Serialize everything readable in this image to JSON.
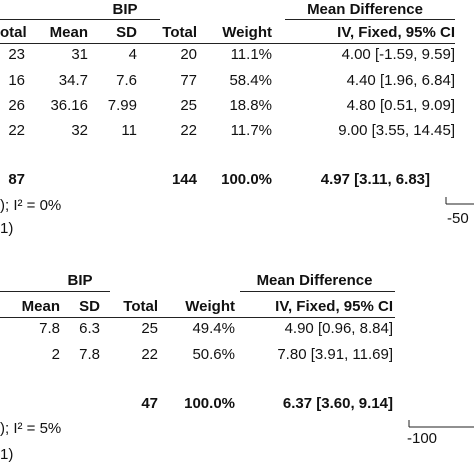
{
  "chart_data": [
    {
      "type": "table",
      "group_header": "BIP",
      "effect_header": "Mean Difference",
      "columns": [
        "otal",
        "Mean",
        "SD",
        "Total",
        "Weight",
        "IV, Fixed, 95% CI"
      ],
      "rows": [
        {
          "total_a": "23",
          "mean": "31",
          "sd": "4",
          "total_b": "20",
          "weight": "11.1%",
          "ci": "4.00 [-1.59, 9.59]"
        },
        {
          "total_a": "16",
          "mean": "34.7",
          "sd": "7.6",
          "total_b": "77",
          "weight": "58.4%",
          "ci": "4.40 [1.96, 6.84]"
        },
        {
          "total_a": "26",
          "mean": "36.16",
          "sd": "7.99",
          "total_b": "25",
          "weight": "18.8%",
          "ci": "4.80 [0.51, 9.09]"
        },
        {
          "total_a": "22",
          "mean": "32",
          "sd": "11",
          "total_b": "22",
          "weight": "11.7%",
          "ci": "9.00 [3.55, 14.45]"
        }
      ],
      "total": {
        "total_a": "87",
        "total_b": "144",
        "weight": "100.0%",
        "ci": "4.97 [3.11, 6.83]"
      },
      "heterogeneity": "); I² = 0%",
      "overall_test": "1)",
      "axis_tick": "-50",
      "axis_tick_value": -50
    },
    {
      "type": "table",
      "group_header": "BIP",
      "effect_header": "Mean Difference",
      "columns": [
        "Mean",
        "SD",
        "Total",
        "Weight",
        "IV, Fixed, 95% CI"
      ],
      "rows": [
        {
          "mean": "7.8",
          "sd": "6.3",
          "total": "25",
          "weight": "49.4%",
          "ci": "4.90 [0.96, 8.84]"
        },
        {
          "mean": "2",
          "sd": "7.8",
          "total": "22",
          "weight": "50.6%",
          "ci": "7.80 [3.91, 11.69]"
        }
      ],
      "total": {
        "total": "47",
        "weight": "100.0%",
        "ci": "6.37 [3.60, 9.14]"
      },
      "heterogeneity": "); I² = 5%",
      "overall_test": "1)",
      "axis_tick": "-100",
      "axis_tick_value": -100
    }
  ]
}
